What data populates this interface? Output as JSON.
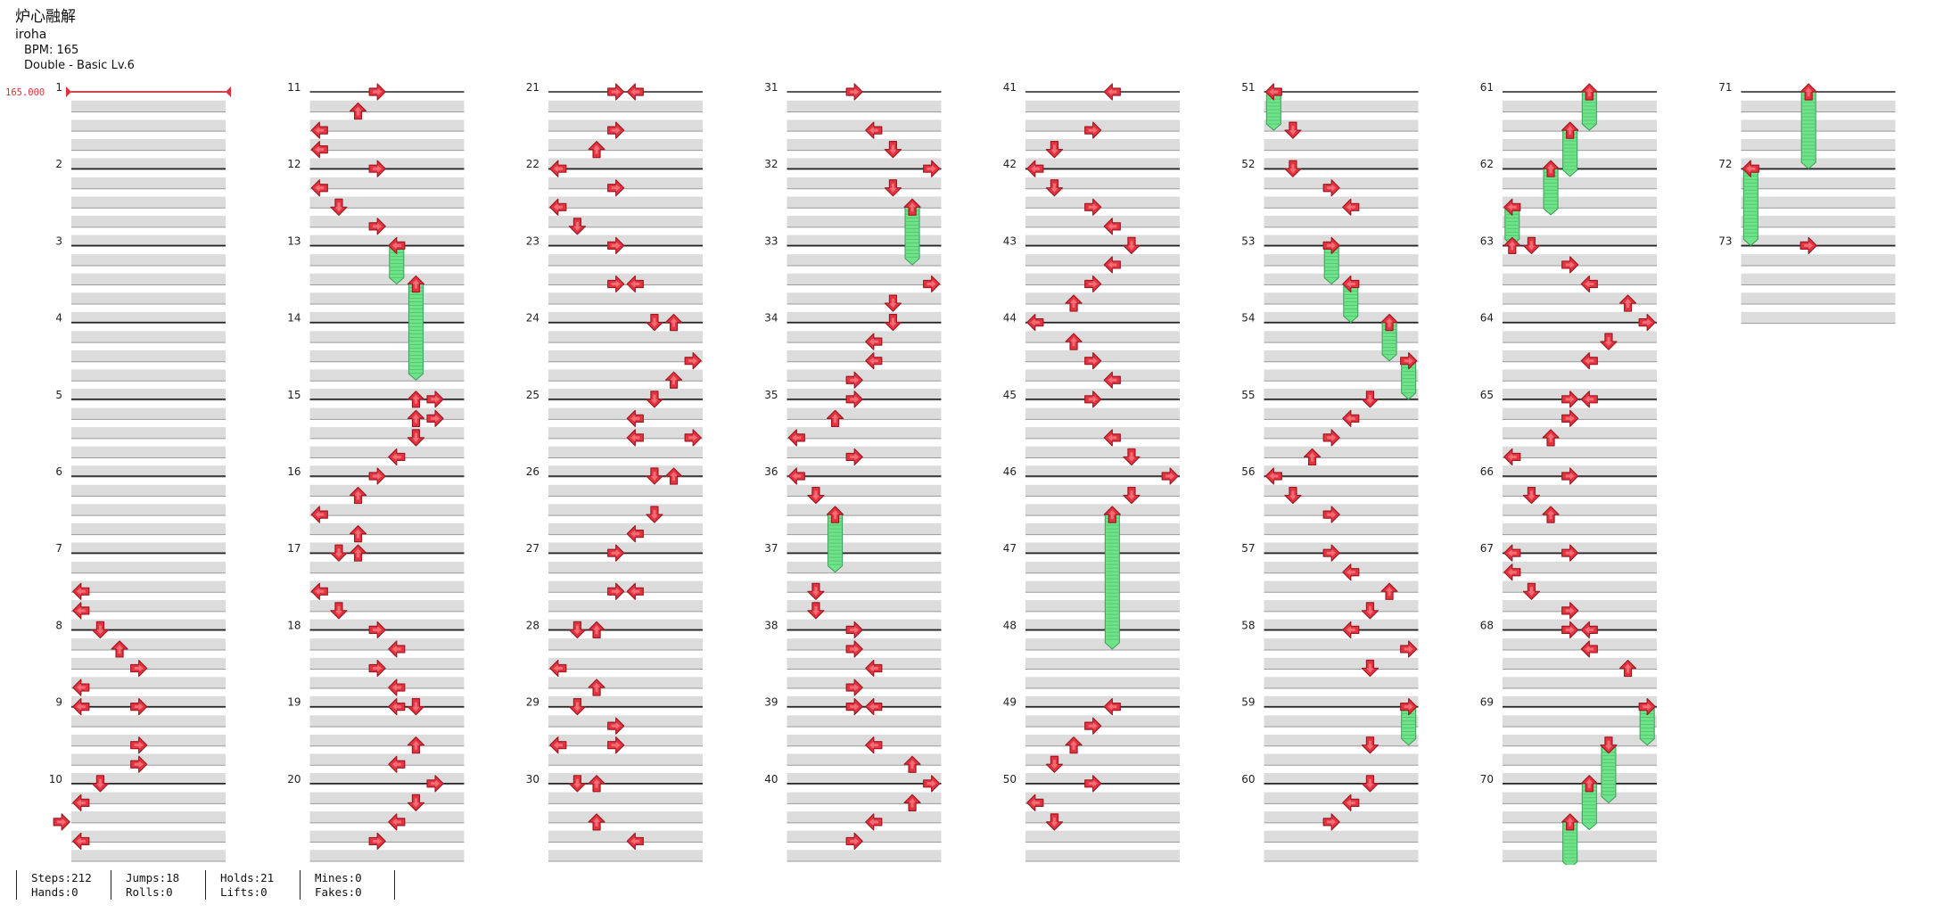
{
  "song": {
    "title": "炉心融解",
    "artist": "iroha",
    "bpm_line": "BPM: 165",
    "difficulty_line": "Double - Basic  Lv.6"
  },
  "bpm_marker": {
    "label": "165.000",
    "color": "#e0303a"
  },
  "colors": {
    "arrow": "#e53340",
    "hold": "#6fe38a",
    "lane": "#dcdcdc",
    "measure_line": "#222222"
  },
  "measures": [
    1,
    2,
    3,
    4,
    5,
    6,
    7,
    8,
    9,
    10,
    11,
    12,
    13,
    14,
    15,
    16,
    17,
    18,
    19,
    20,
    21,
    22,
    23,
    24,
    25,
    26,
    27,
    28,
    29,
    30,
    31,
    32,
    33,
    34,
    35,
    36,
    37,
    38,
    39,
    40,
    41,
    42,
    43,
    44,
    45,
    46,
    47,
    48,
    49,
    50,
    51,
    52,
    53,
    54,
    55,
    56,
    57,
    58,
    59,
    60,
    61,
    62,
    63,
    64,
    65,
    66,
    67,
    68,
    69,
    70,
    71,
    72,
    73
  ],
  "notes": [
    [
      7.5,
      0,
      "L"
    ],
    [
      7.75,
      0,
      "L"
    ],
    [
      8,
      1,
      "D"
    ],
    [
      8.25,
      2,
      "U"
    ],
    [
      8.5,
      3,
      "R"
    ],
    [
      8.75,
      0,
      "L"
    ],
    [
      9,
      0,
      "L"
    ],
    [
      9,
      3,
      "R"
    ],
    [
      9.5,
      3,
      "R"
    ],
    [
      9.75,
      3,
      "R"
    ],
    [
      10,
      1,
      "D"
    ],
    [
      10.25,
      0,
      "L"
    ],
    [
      10.5,
      -1,
      "R"
    ],
    [
      10.75,
      0,
      "L"
    ],
    [
      11,
      3,
      "R"
    ],
    [
      11.25,
      2,
      "U"
    ],
    [
      11.5,
      0,
      "L"
    ],
    [
      11.75,
      0,
      "L"
    ],
    [
      12,
      3,
      "R"
    ],
    [
      12.25,
      0,
      "L"
    ],
    [
      12.5,
      1,
      "D"
    ],
    [
      12.75,
      3,
      "R"
    ],
    [
      13,
      4,
      "L"
    ],
    [
      13.5,
      5,
      "U"
    ],
    [
      15,
      5,
      "U"
    ],
    [
      15,
      6,
      "R"
    ],
    [
      15.25,
      5,
      "U"
    ],
    [
      15.25,
      6,
      "R"
    ],
    [
      15.5,
      5,
      "D"
    ],
    [
      15.75,
      4,
      "L"
    ],
    [
      16,
      3,
      "R"
    ],
    [
      16.25,
      2,
      "U"
    ],
    [
      16.5,
      0,
      "L"
    ],
    [
      16.75,
      2,
      "U"
    ],
    [
      17,
      1,
      "D"
    ],
    [
      17,
      2,
      "U"
    ],
    [
      17.5,
      0,
      "L"
    ],
    [
      17.75,
      1,
      "D"
    ],
    [
      18,
      3,
      "R"
    ],
    [
      18.25,
      4,
      "L"
    ],
    [
      18.5,
      3,
      "R"
    ],
    [
      18.75,
      4,
      "L"
    ],
    [
      19,
      4,
      "L"
    ],
    [
      19,
      5,
      "D"
    ],
    [
      19.5,
      5,
      "U"
    ],
    [
      19.75,
      4,
      "L"
    ],
    [
      20,
      6,
      "R"
    ],
    [
      20.25,
      5,
      "D"
    ],
    [
      20.5,
      4,
      "L"
    ],
    [
      20.75,
      3,
      "R"
    ],
    [
      21,
      3,
      "R"
    ],
    [
      21,
      4,
      "L"
    ],
    [
      21.5,
      3,
      "R"
    ],
    [
      21.75,
      2,
      "U"
    ],
    [
      22,
      0,
      "L"
    ],
    [
      22.25,
      3,
      "R"
    ],
    [
      22.5,
      0,
      "L"
    ],
    [
      22.75,
      1,
      "D"
    ],
    [
      23,
      3,
      "R"
    ],
    [
      23.5,
      3,
      "R"
    ],
    [
      23.5,
      4,
      "L"
    ],
    [
      24,
      5,
      "D"
    ],
    [
      24,
      6,
      "U"
    ],
    [
      24.5,
      7,
      "R"
    ],
    [
      24.75,
      6,
      "U"
    ],
    [
      25,
      5,
      "D"
    ],
    [
      25.25,
      4,
      "L"
    ],
    [
      25.5,
      4,
      "L"
    ],
    [
      25.5,
      7,
      "R"
    ],
    [
      26,
      5,
      "D"
    ],
    [
      26,
      6,
      "U"
    ],
    [
      26.5,
      5,
      "D"
    ],
    [
      26.75,
      4,
      "L"
    ],
    [
      27,
      3,
      "R"
    ],
    [
      27.5,
      3,
      "R"
    ],
    [
      27.5,
      4,
      "L"
    ],
    [
      28,
      1,
      "D"
    ],
    [
      28,
      2,
      "U"
    ],
    [
      28.5,
      0,
      "L"
    ],
    [
      28.75,
      2,
      "U"
    ],
    [
      29,
      1,
      "D"
    ],
    [
      29.25,
      3,
      "R"
    ],
    [
      29.5,
      0,
      "L"
    ],
    [
      29.5,
      3,
      "R"
    ],
    [
      30,
      1,
      "D"
    ],
    [
      30,
      2,
      "U"
    ],
    [
      30.5,
      2,
      "U"
    ],
    [
      30.75,
      4,
      "L"
    ],
    [
      31,
      3,
      "R"
    ],
    [
      31.5,
      4,
      "L"
    ],
    [
      31.75,
      5,
      "D"
    ],
    [
      32,
      7,
      "R"
    ],
    [
      32.25,
      5,
      "D"
    ],
    [
      32.5,
      6,
      "U"
    ],
    [
      33.5,
      7,
      "R"
    ],
    [
      33.75,
      5,
      "D"
    ],
    [
      34,
      5,
      "D"
    ],
    [
      34.25,
      4,
      "L"
    ],
    [
      34.5,
      4,
      "L"
    ],
    [
      34.75,
      3,
      "R"
    ],
    [
      35,
      3,
      "R"
    ],
    [
      35.25,
      2,
      "U"
    ],
    [
      35.5,
      0,
      "L"
    ],
    [
      35.75,
      3,
      "R"
    ],
    [
      36,
      0,
      "L"
    ],
    [
      36.25,
      1,
      "D"
    ],
    [
      36.5,
      2,
      "U"
    ],
    [
      37.5,
      1,
      "D"
    ],
    [
      37.75,
      1,
      "D"
    ],
    [
      38,
      3,
      "R"
    ],
    [
      38.25,
      3,
      "R"
    ],
    [
      38.5,
      4,
      "L"
    ],
    [
      38.75,
      3,
      "R"
    ],
    [
      39,
      3,
      "R"
    ],
    [
      39,
      4,
      "L"
    ],
    [
      39.5,
      4,
      "L"
    ],
    [
      39.75,
      6,
      "U"
    ],
    [
      40,
      7,
      "R"
    ],
    [
      40.25,
      6,
      "U"
    ],
    [
      40.5,
      4,
      "L"
    ],
    [
      40.75,
      3,
      "R"
    ],
    [
      41,
      4,
      "L"
    ],
    [
      41.5,
      3,
      "R"
    ],
    [
      41.75,
      1,
      "D"
    ],
    [
      42,
      0,
      "L"
    ],
    [
      42.25,
      1,
      "D"
    ],
    [
      42.5,
      3,
      "R"
    ],
    [
      42.75,
      4,
      "L"
    ],
    [
      43,
      5,
      "D"
    ],
    [
      43.25,
      4,
      "L"
    ],
    [
      43.5,
      3,
      "R"
    ],
    [
      43.75,
      2,
      "U"
    ],
    [
      44,
      0,
      "L"
    ],
    [
      44.25,
      2,
      "U"
    ],
    [
      44.5,
      3,
      "R"
    ],
    [
      44.75,
      4,
      "L"
    ],
    [
      45,
      3,
      "R"
    ],
    [
      45.5,
      4,
      "L"
    ],
    [
      45.75,
      5,
      "D"
    ],
    [
      46,
      7,
      "R"
    ],
    [
      46.25,
      5,
      "D"
    ],
    [
      46.5,
      4,
      "U"
    ],
    [
      49,
      4,
      "L"
    ],
    [
      49.25,
      3,
      "R"
    ],
    [
      49.5,
      2,
      "U"
    ],
    [
      49.75,
      1,
      "D"
    ],
    [
      50,
      3,
      "R"
    ],
    [
      50.25,
      0,
      "L"
    ],
    [
      50.5,
      1,
      "D"
    ],
    [
      51,
      0,
      "L"
    ],
    [
      51.5,
      1,
      "D"
    ],
    [
      52,
      1,
      "D"
    ],
    [
      52.25,
      3,
      "R"
    ],
    [
      52.5,
      4,
      "L"
    ],
    [
      53,
      3,
      "R"
    ],
    [
      53.5,
      4,
      "L"
    ],
    [
      54,
      6,
      "U"
    ],
    [
      54.5,
      7,
      "R"
    ],
    [
      55,
      5,
      "D"
    ],
    [
      55.25,
      4,
      "L"
    ],
    [
      55.5,
      3,
      "R"
    ],
    [
      55.75,
      2,
      "U"
    ],
    [
      56,
      0,
      "L"
    ],
    [
      56.25,
      1,
      "D"
    ],
    [
      56.5,
      3,
      "R"
    ],
    [
      57,
      3,
      "R"
    ],
    [
      57.25,
      4,
      "L"
    ],
    [
      57.5,
      6,
      "U"
    ],
    [
      57.75,
      5,
      "D"
    ],
    [
      58,
      4,
      "L"
    ],
    [
      58.25,
      7,
      "R"
    ],
    [
      58.5,
      5,
      "D"
    ],
    [
      59,
      7,
      "R"
    ],
    [
      59.5,
      5,
      "D"
    ],
    [
      60,
      5,
      "D"
    ],
    [
      60.25,
      4,
      "L"
    ],
    [
      60.5,
      3,
      "R"
    ],
    [
      61,
      4,
      "U"
    ],
    [
      61.5,
      3,
      "U"
    ],
    [
      62,
      2,
      "U"
    ],
    [
      62.5,
      0,
      "L"
    ],
    [
      63,
      0,
      "U"
    ],
    [
      63,
      1,
      "D"
    ],
    [
      63.25,
      3,
      "R"
    ],
    [
      63.5,
      4,
      "L"
    ],
    [
      63.75,
      6,
      "U"
    ],
    [
      64,
      7,
      "R"
    ],
    [
      64.25,
      5,
      "D"
    ],
    [
      64.5,
      4,
      "L"
    ],
    [
      65,
      3,
      "R"
    ],
    [
      65,
      4,
      "L"
    ],
    [
      65.25,
      3,
      "R"
    ],
    [
      65.5,
      2,
      "U"
    ],
    [
      65.75,
      0,
      "L"
    ],
    [
      66,
      3,
      "R"
    ],
    [
      66.25,
      1,
      "D"
    ],
    [
      66.5,
      2,
      "U"
    ],
    [
      67,
      0,
      "L"
    ],
    [
      67,
      3,
      "R"
    ],
    [
      67.25,
      0,
      "L"
    ],
    [
      67.5,
      1,
      "D"
    ],
    [
      67.75,
      3,
      "R"
    ],
    [
      68,
      3,
      "R"
    ],
    [
      68,
      4,
      "L"
    ],
    [
      68.25,
      4,
      "L"
    ],
    [
      68.5,
      6,
      "U"
    ],
    [
      69,
      7,
      "R"
    ],
    [
      69.5,
      5,
      "D"
    ],
    [
      70,
      4,
      "U"
    ],
    [
      70.5,
      3,
      "U"
    ],
    [
      71,
      3,
      "U"
    ],
    [
      72,
      0,
      "L"
    ],
    [
      73,
      3,
      "R"
    ]
  ],
  "holds": [
    [
      13,
      4,
      13.5
    ],
    [
      13.5,
      5,
      14.75
    ],
    [
      36.5,
      2,
      37.25
    ],
    [
      46.5,
      4,
      48.25
    ],
    [
      32.5,
      6,
      33.25
    ],
    [
      51,
      0,
      51.5
    ],
    [
      53,
      3,
      53.5
    ],
    [
      53.5,
      4,
      54
    ],
    [
      54,
      6,
      54.5
    ],
    [
      54.5,
      7,
      55
    ],
    [
      59,
      7,
      59.5
    ],
    [
      61,
      4,
      61.5
    ],
    [
      61.5,
      3,
      62.1
    ],
    [
      62,
      2,
      62.6
    ],
    [
      62.5,
      0,
      63
    ],
    [
      69,
      7,
      69.5
    ],
    [
      69.5,
      5,
      70.25
    ],
    [
      70,
      4,
      70.6
    ],
    [
      70.5,
      3,
      71.1
    ],
    [
      71,
      3,
      72
    ],
    [
      72,
      0,
      73
    ]
  ],
  "stats": {
    "steps": "Steps:212",
    "hands": "Hands:0",
    "jumps": "Jumps:18",
    "rolls": "Rolls:0",
    "holds": "Holds:21",
    "lifts": "Lifts:0",
    "mines": "Mines:0",
    "fakes": "Fakes:0"
  }
}
